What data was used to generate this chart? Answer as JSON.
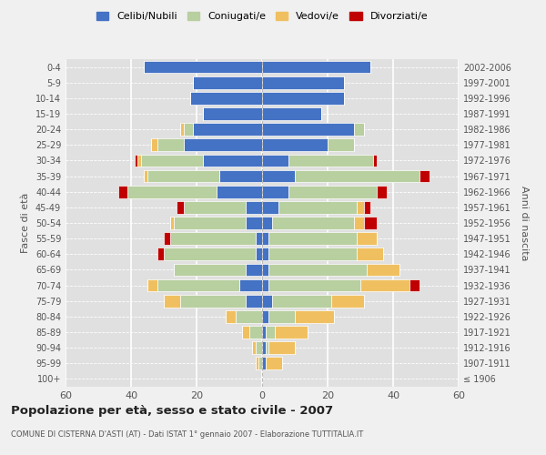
{
  "age_groups": [
    "100+",
    "95-99",
    "90-94",
    "85-89",
    "80-84",
    "75-79",
    "70-74",
    "65-69",
    "60-64",
    "55-59",
    "50-54",
    "45-49",
    "40-44",
    "35-39",
    "30-34",
    "25-29",
    "20-24",
    "15-19",
    "10-14",
    "5-9",
    "0-4"
  ],
  "birth_years": [
    "≤ 1906",
    "1907-1911",
    "1912-1916",
    "1917-1921",
    "1922-1926",
    "1927-1931",
    "1932-1936",
    "1937-1941",
    "1942-1946",
    "1947-1951",
    "1952-1956",
    "1957-1961",
    "1962-1966",
    "1967-1971",
    "1972-1976",
    "1977-1981",
    "1982-1986",
    "1987-1991",
    "1992-1996",
    "1997-2001",
    "2002-2006"
  ],
  "male_celibi": [
    0,
    0,
    0,
    0,
    0,
    5,
    7,
    5,
    2,
    2,
    5,
    5,
    14,
    13,
    18,
    24,
    21,
    18,
    22,
    21,
    36
  ],
  "male_coniugati": [
    0,
    1,
    2,
    4,
    8,
    20,
    25,
    22,
    28,
    26,
    22,
    19,
    27,
    22,
    19,
    8,
    3,
    0,
    0,
    0,
    0
  ],
  "male_vedovi": [
    0,
    1,
    1,
    2,
    3,
    5,
    3,
    0,
    0,
    0,
    1,
    0,
    0,
    1,
    1,
    2,
    1,
    0,
    0,
    0,
    0
  ],
  "male_divorziati": [
    0,
    0,
    0,
    0,
    0,
    0,
    0,
    0,
    2,
    2,
    0,
    2,
    3,
    0,
    1,
    0,
    0,
    0,
    0,
    0,
    0
  ],
  "female_celibi": [
    0,
    1,
    1,
    1,
    2,
    3,
    2,
    2,
    2,
    2,
    3,
    5,
    8,
    10,
    8,
    20,
    28,
    18,
    25,
    25,
    33
  ],
  "female_coniugati": [
    0,
    0,
    1,
    3,
    8,
    18,
    28,
    30,
    27,
    27,
    25,
    24,
    27,
    38,
    26,
    8,
    3,
    0,
    0,
    0,
    0
  ],
  "female_vedovi": [
    0,
    5,
    8,
    10,
    12,
    10,
    15,
    10,
    8,
    6,
    3,
    2,
    0,
    0,
    0,
    0,
    0,
    0,
    0,
    0,
    0
  ],
  "female_divorziati": [
    0,
    0,
    0,
    0,
    0,
    0,
    3,
    0,
    0,
    0,
    4,
    2,
    3,
    3,
    1,
    0,
    0,
    0,
    0,
    0,
    0
  ],
  "color_celibi": "#4472c4",
  "color_coniugati": "#b8cfa0",
  "color_vedovi": "#f0c060",
  "color_divorziati": "#c00000",
  "title": "Popolazione per età, sesso e stato civile - 2007",
  "subtitle": "COMUNE DI CISTERNA D'ASTI (AT) - Dati ISTAT 1° gennaio 2007 - Elaborazione TUTTITALIA.IT",
  "ylabel_left": "Fasce di età",
  "ylabel_right": "Anni di nascita",
  "xlim": 60,
  "legend_labels": [
    "Celibi/Nubili",
    "Coniugati/e",
    "Vedovi/e",
    "Divorziati/e"
  ]
}
